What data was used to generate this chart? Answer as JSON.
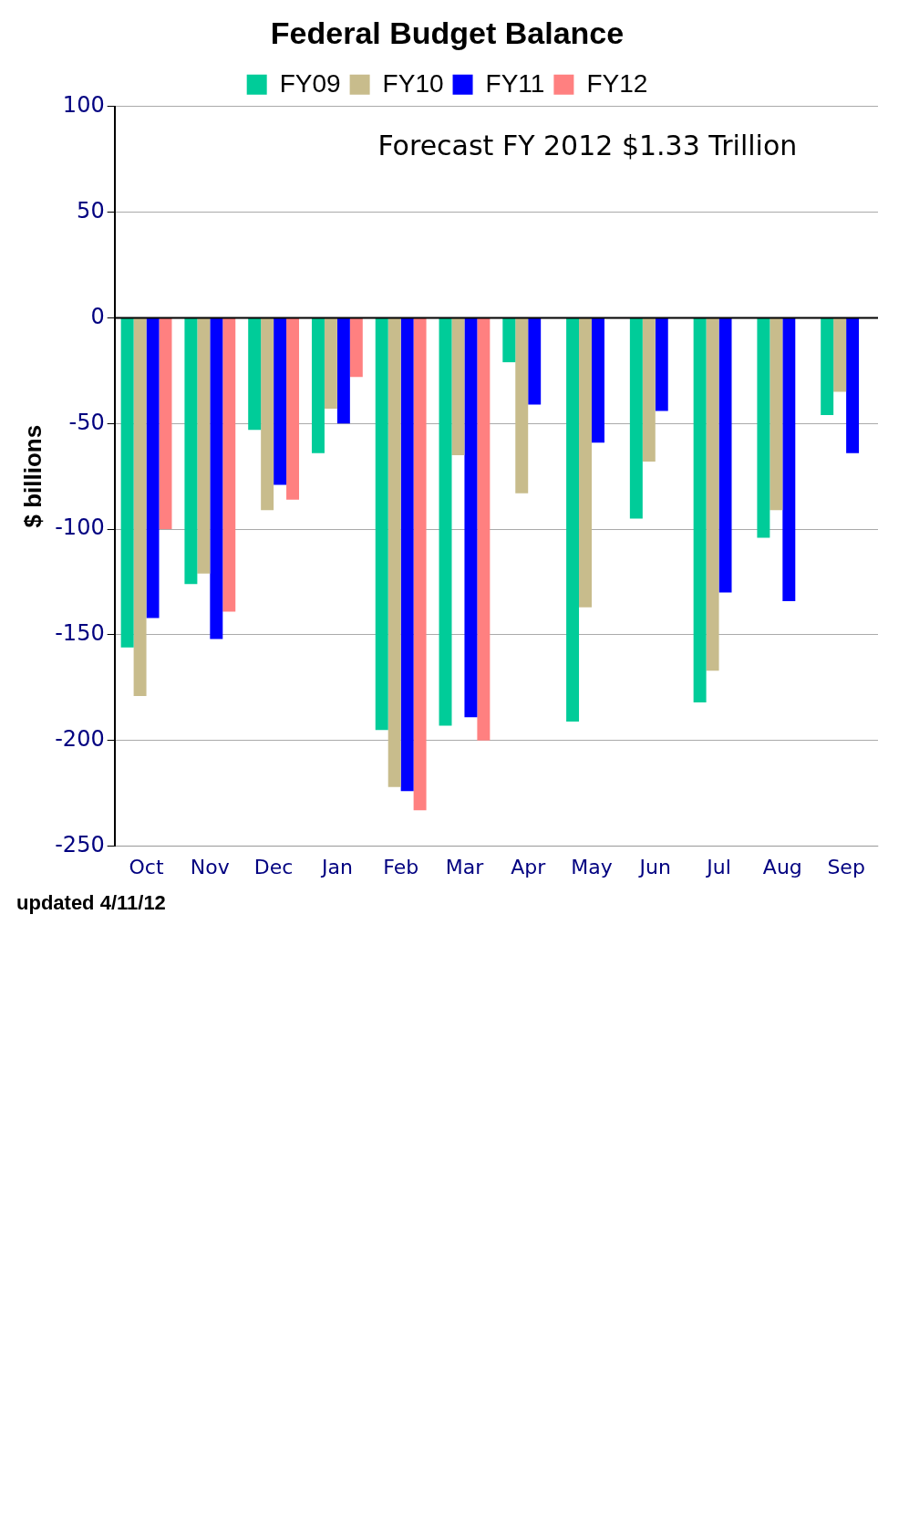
{
  "chart_data": {
    "type": "bar",
    "title": "Federal Budget Balance",
    "ylabel": "$ billions",
    "categories": [
      "Oct",
      "Nov",
      "Dec",
      "Jan",
      "Feb",
      "Mar",
      "Apr",
      "May",
      "Jun",
      "Jul",
      "Aug",
      "Sep"
    ],
    "series": [
      {
        "name": "FY09",
        "color": "#00cc99",
        "values": [
          -156,
          -126,
          -53,
          -64,
          -195,
          -193,
          -21,
          -191,
          -95,
          -182,
          -104,
          -46
        ]
      },
      {
        "name": "FY10",
        "color": "#c8bc8c",
        "values": [
          -179,
          -121,
          -91,
          -43,
          -222,
          -65,
          -83,
          -137,
          -68,
          -167,
          -91,
          -35
        ]
      },
      {
        "name": "FY11",
        "color": "#0000ff",
        "values": [
          -142,
          -152,
          -79,
          -50,
          -224,
          -189,
          -41,
          -59,
          -44,
          -130,
          -134,
          -64
        ]
      },
      {
        "name": "FY12",
        "color": "#ff8080",
        "values": [
          -100,
          -139,
          -86,
          -28,
          -233,
          -200,
          null,
          null,
          null,
          null,
          null,
          null
        ]
      }
    ],
    "ylim": [
      -250,
      100
    ],
    "yticks": [
      100,
      50,
      0,
      -50,
      -100,
      -150,
      -200,
      -250
    ],
    "grid": "y",
    "legend": "top",
    "annotations": [
      "Forecast FY 2012 $1.33 Trillion",
      "updated 4/11/12"
    ]
  }
}
